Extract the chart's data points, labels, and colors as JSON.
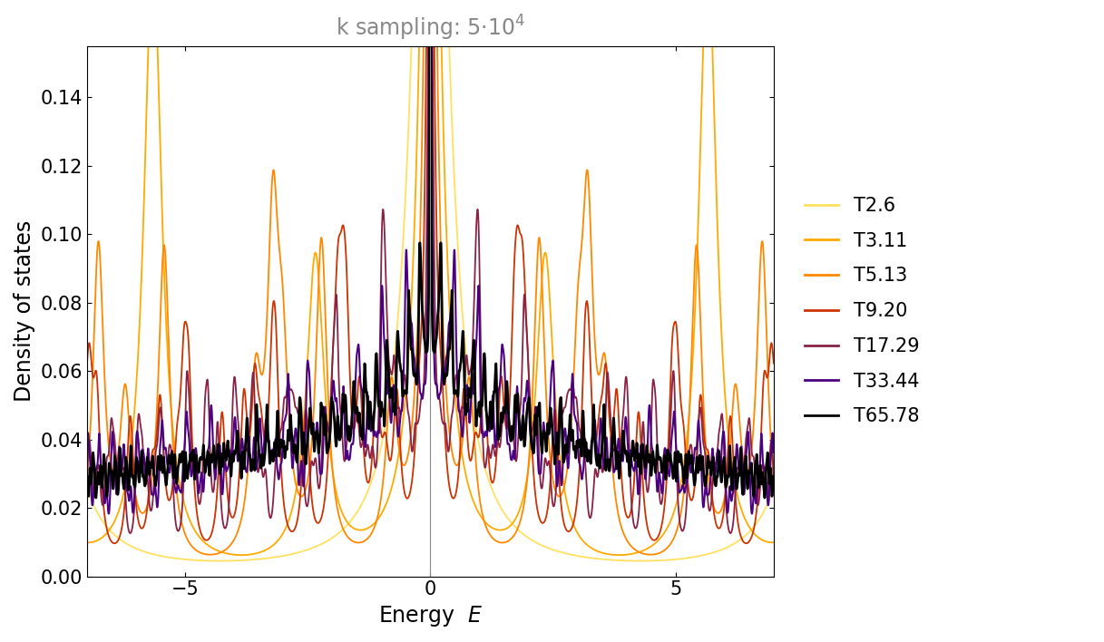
{
  "title": "k sampling: 5·10⁴",
  "xlabel": "Energy  E",
  "ylabel": "Density of states",
  "xlim": [
    -7.0,
    7.0
  ],
  "ylim": [
    0,
    0.155
  ],
  "yticks": [
    0.0,
    0.02,
    0.04,
    0.06,
    0.08,
    0.1,
    0.12,
    0.14
  ],
  "xticks": [
    -5,
    0,
    5
  ],
  "series": [
    {
      "label": "T2.6",
      "color": "#FFE060",
      "lw": 1.3,
      "nk": 4,
      "eta": 0.35
    },
    {
      "label": "T3.11",
      "color": "#FFAA00",
      "lw": 1.3,
      "nk": 8,
      "eta": 0.22
    },
    {
      "label": "T5.13",
      "color": "#FF8800",
      "lw": 1.3,
      "nk": 14,
      "eta": 0.14
    },
    {
      "label": "T9.20",
      "color": "#CC3300",
      "lw": 1.3,
      "nk": 26,
      "eta": 0.09
    },
    {
      "label": "T17.29",
      "color": "#882244",
      "lw": 1.3,
      "nk": 50,
      "eta": 0.055
    },
    {
      "label": "T33.44",
      "color": "#4B0082",
      "lw": 1.5,
      "nk": 100,
      "eta": 0.032
    },
    {
      "label": "T65.78",
      "color": "#000000",
      "lw": 2.0,
      "nk": 224,
      "eta": 0.018
    }
  ],
  "vline_color": "#888888",
  "vline_lw": 0.8,
  "legend_fontsize": 15,
  "title_fontsize": 17,
  "axis_label_fontsize": 17,
  "tick_fontsize": 15,
  "background_color": "#ffffff",
  "title_color": "#888888",
  "bandwidth": 4.0,
  "n_energy": 4000
}
